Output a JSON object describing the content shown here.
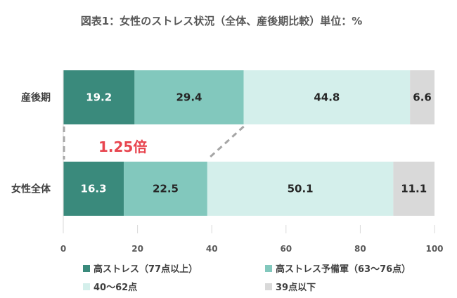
{
  "chart_data": {
    "type": "bar",
    "orientation": "horizontal",
    "stacked": true,
    "title": "図表1：女性のストレス状況（全体、産後期比較）単位：%",
    "categories": [
      "産後期",
      "女性全体"
    ],
    "series": [
      {
        "name": "高ストレス（77点以上）",
        "color": "#3a8a7c",
        "label_color": "#ffffff",
        "values": [
          19.2,
          16.3
        ]
      },
      {
        "name": "高ストレス予備軍（63～76点）",
        "color": "#82c8bd",
        "label_color": "#262626",
        "values": [
          29.4,
          22.5
        ]
      },
      {
        "name": "40～62点",
        "color": "#d4efeb",
        "label_color": "#262626",
        "values": [
          44.8,
          50.1
        ]
      },
      {
        "name": "39点以下",
        "color": "#d9d9d9",
        "label_color": "#262626",
        "values": [
          6.6,
          11.1
        ]
      }
    ],
    "x_ticks": [
      0,
      20,
      40,
      60,
      80,
      100
    ],
    "xlim": [
      0,
      100
    ],
    "grid": false,
    "legend_position": "bottom",
    "annotation": {
      "text": "1.25倍",
      "color": "#e8454f"
    }
  }
}
